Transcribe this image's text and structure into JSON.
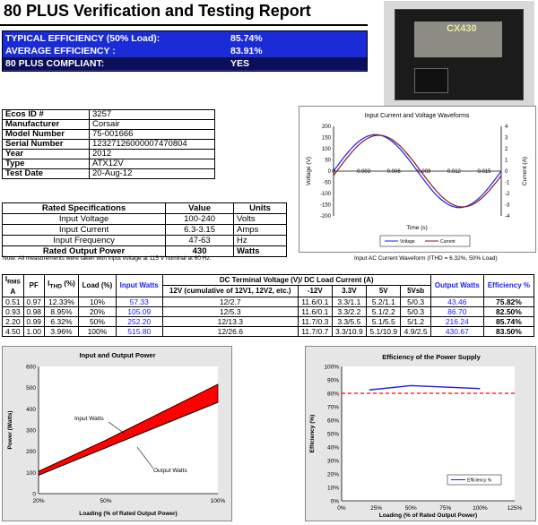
{
  "title": "80 PLUS Verification and Testing Report",
  "efficiency": {
    "rows": [
      {
        "label": "TYPICAL EFFICIENCY (50% Load):",
        "value": "85.74%"
      },
      {
        "label": "AVERAGE EFFICIENCY :",
        "value": "83.91%"
      },
      {
        "label": "80 PLUS COMPLIANT:",
        "value": "YES"
      }
    ]
  },
  "product_label": "CX430",
  "info": [
    {
      "k": "Ecos ID #",
      "v": "3257"
    },
    {
      "k": "Manufacturer",
      "v": "Corsair"
    },
    {
      "k": "Model Number",
      "v": "75-001666"
    },
    {
      "k": "Serial Number",
      "v": "12327126000007470804"
    },
    {
      "k": "Year",
      "v": "2012"
    },
    {
      "k": "Type",
      "v": "ATX12V"
    },
    {
      "k": "Test Date",
      "v": "20-Aug-12"
    }
  ],
  "specs": {
    "headers": [
      "Rated Specifications",
      "Value",
      "Units"
    ],
    "rows": [
      {
        "name": "Input Voltage",
        "value": "100-240",
        "unit": "Volts"
      },
      {
        "name": "Input Current",
        "value": "6.3-3.15",
        "unit": "Amps"
      },
      {
        "name": "Input Frequency",
        "value": "47-63",
        "unit": "Hz"
      },
      {
        "name": "Rated Output Power",
        "value": "430",
        "unit": "Watts"
      }
    ]
  },
  "note": "Note: All measurements were taken with input voltage at 115 V nominal at 60 Hz.",
  "wave_caption": "Input AC Current Waveform (ITHD = 6.32%, 50% Load)",
  "measurements": {
    "headers": {
      "irms_main": "I",
      "irms_sub": "RMS",
      "irms_unit": "A",
      "pf": "PF",
      "ithd_main": "I",
      "ithd_sub": "THD",
      "ithd_unit": " (%)",
      "load": "Load (%)",
      "input": "Input Watts",
      "dc": "DC Terminal Voltage (V)/ DC Load Current (A)",
      "dc_cols": [
        "12V (cumulative of 12V1, 12V2, etc.)",
        "-12V",
        "3.3V",
        "5V",
        "5Vsb"
      ],
      "output": "Output Watts",
      "eff": "Efficiency %"
    },
    "rows": [
      {
        "irms": "0.51",
        "pf": "0.97",
        "ithd": "12.33%",
        "load": "10%",
        "input": "57.33",
        "v12": "12/2.7",
        "vm12": "11.6/0.1",
        "v33": "3.3/1.1",
        "v5": "5.2/1.1",
        "v5sb": "5/0.3",
        "output": "43.46",
        "eff": "75.82%"
      },
      {
        "irms": "0.93",
        "pf": "0.98",
        "ithd": "8.95%",
        "load": "20%",
        "input": "105.09",
        "v12": "12/5.3",
        "vm12": "11.6/0.1",
        "v33": "3.3/2.2",
        "v5": "5.1/2.2",
        "v5sb": "5/0.3",
        "output": "86.70",
        "eff": "82.50%"
      },
      {
        "irms": "2.20",
        "pf": "0.99",
        "ithd": "6.32%",
        "load": "50%",
        "input": "252.20",
        "v12": "12/13.3",
        "vm12": "11.7/0.3",
        "v33": "3.3/5.5",
        "v5": "5.1/5.5",
        "v5sb": "5/1.2",
        "output": "216.24",
        "eff": "85.74%"
      },
      {
        "irms": "4.50",
        "pf": "1.00",
        "ithd": "3.96%",
        "load": "100%",
        "input": "515.80",
        "v12": "12/26.6",
        "vm12": "11.7/0.7",
        "v33": "3.3/10.9",
        "v5": "5.1/10.9",
        "v5sb": "4.9/2.5",
        "output": "430.67",
        "eff": "83.50%"
      }
    ]
  },
  "colors": {
    "blue_box": "#1a2bd8",
    "red": "#ff0000",
    "blue_line": "#1a1aff"
  },
  "chart_data": [
    {
      "type": "line",
      "title": "Input Current and Voltage Waveforms",
      "xlabel": "Time (s)",
      "ylabel": "Voltage (V)",
      "y2label": "Current (A)",
      "xlim": [
        0,
        0.0167
      ],
      "xticks": [
        "0",
        "0.003",
        "0.006",
        "0.009",
        "0.012",
        "0.015"
      ],
      "ylim": [
        -200,
        200
      ],
      "yticks": [
        "200",
        "150",
        "100",
        "50",
        "0",
        "-50",
        "-100",
        "-150",
        "-200"
      ],
      "y2lim": [
        -4,
        4
      ],
      "y2ticks": [
        "4",
        "3",
        "2",
        "1",
        "0",
        "-1",
        "-2",
        "-3",
        "-4"
      ],
      "legend": [
        "Voltage",
        "Current"
      ],
      "series": [
        {
          "name": "Voltage",
          "color": "#1a1aff",
          "amplitude": 163,
          "unit": "V"
        },
        {
          "name": "Current",
          "color": "#8b1a1a",
          "amplitude": 3.2,
          "unit": "A"
        }
      ]
    },
    {
      "type": "area",
      "title": "Input and Output Power",
      "xlabel": "Loading (% of Rated Output Power)",
      "ylabel": "Power (Watts)",
      "categories": [
        "10%",
        "20%",
        "50%",
        "100%"
      ],
      "x": [
        10,
        20,
        50,
        100
      ],
      "xticks": [
        "20%",
        "50%",
        "100%"
      ],
      "xlim": [
        20,
        100
      ],
      "ylim": [
        0,
        600
      ],
      "yticks": [
        "600",
        "500",
        "400",
        "300",
        "200",
        "100",
        "0"
      ],
      "series": [
        {
          "name": "Input Watts",
          "values": [
            57.33,
            105.09,
            252.2,
            515.8
          ]
        },
        {
          "name": "Output Watts",
          "values": [
            43.46,
            86.7,
            216.24,
            430.67
          ]
        }
      ],
      "annotations": [
        "Input Watts",
        "Output Watts"
      ]
    },
    {
      "type": "line",
      "title": "Efficiency of the Power Supply",
      "xlabel": "Loading (% of Rated Output Power)",
      "ylabel": "Efficiency (%)",
      "xlim": [
        0,
        125
      ],
      "xticks": [
        "0%",
        "25%",
        "50%",
        "75%",
        "100%",
        "125%"
      ],
      "ylim": [
        0,
        100
      ],
      "yticks": [
        "100%",
        "90%",
        "80%",
        "70%",
        "60%",
        "50%",
        "40%",
        "30%",
        "20%",
        "10%",
        "0%"
      ],
      "legend": [
        "Efficiency %"
      ],
      "series": [
        {
          "name": "Efficiency %",
          "x": [
            20,
            50,
            100
          ],
          "values": [
            82.5,
            85.74,
            83.5
          ],
          "color": "#1a1aff"
        }
      ],
      "reference_line": {
        "value": 80,
        "color": "#ff0000",
        "style": "dashed"
      }
    }
  ]
}
